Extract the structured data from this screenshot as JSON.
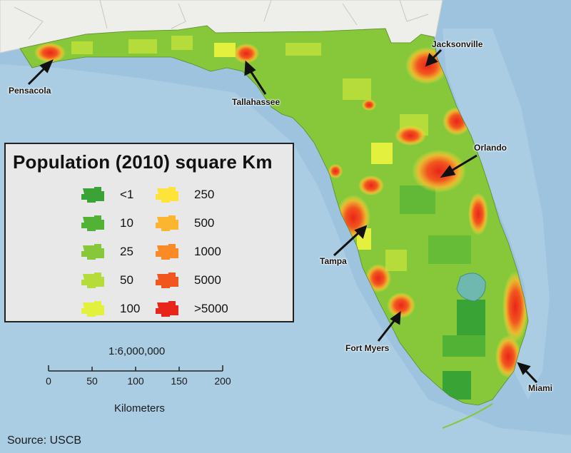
{
  "legend": {
    "title": "Population (2010) square Km",
    "items": [
      {
        "label": "<1",
        "color": "#3aa335"
      },
      {
        "label": "10",
        "color": "#52b236"
      },
      {
        "label": "25",
        "color": "#86c83a"
      },
      {
        "label": "50",
        "color": "#b6dc3c"
      },
      {
        "label": "100",
        "color": "#e4f03e"
      },
      {
        "label": "250",
        "color": "#fde33a"
      },
      {
        "label": "500",
        "color": "#fcb52e"
      },
      {
        "label": "1000",
        "color": "#f98a26"
      },
      {
        "label": "5000",
        "color": "#f2561f"
      },
      {
        "label": ">5000",
        "color": "#e8251a"
      }
    ]
  },
  "cities": [
    {
      "name": "Pensacola"
    },
    {
      "name": "Tallahassee"
    },
    {
      "name": "Jacksonville"
    },
    {
      "name": "Orlando"
    },
    {
      "name": "Tampa"
    },
    {
      "name": "Fort Myers"
    },
    {
      "name": "Miami"
    }
  ],
  "scale": {
    "ratio": "1:6,000,000",
    "ticks": [
      "0",
      "50",
      "100",
      "150",
      "200"
    ],
    "unit": "Kilometers"
  },
  "source": "Source: USCB",
  "colors": {
    "water": "#9ec3de",
    "land_neighbor": "#eeeeea",
    "land_base": "#86c83a",
    "lake": "#6fb8b0"
  }
}
